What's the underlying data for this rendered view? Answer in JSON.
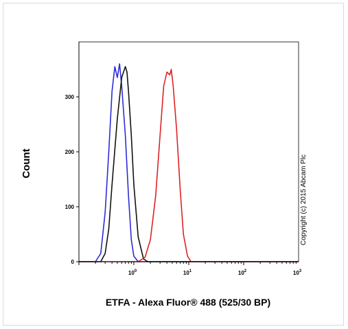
{
  "chart_data": {
    "type": "line",
    "xlabel": "ETFA - Alexa Fluor® 488 (525/30 BP)",
    "ylabel": "Count",
    "x_scale": "log",
    "xlim": [
      0.1,
      1000
    ],
    "ylim": [
      0,
      400
    ],
    "grid": false,
    "x_ticks": [
      {
        "value": 1,
        "base": "10",
        "exp": "0"
      },
      {
        "value": 10,
        "base": "10",
        "exp": "1"
      },
      {
        "value": 100,
        "base": "10",
        "exp": "2"
      },
      {
        "value": 1000,
        "base": "10",
        "exp": "3"
      }
    ],
    "y_ticks": [
      0,
      100,
      200,
      300
    ],
    "annotation": "Copyright (c) 2015 Abcam Plc",
    "series": [
      {
        "color": "#2b2bd6",
        "points": [
          [
            0.2,
            0
          ],
          [
            0.25,
            15
          ],
          [
            0.3,
            90
          ],
          [
            0.35,
            200
          ],
          [
            0.4,
            310
          ],
          [
            0.45,
            355
          ],
          [
            0.5,
            335
          ],
          [
            0.55,
            360
          ],
          [
            0.6,
            320
          ],
          [
            0.7,
            230
          ],
          [
            0.8,
            120
          ],
          [
            0.9,
            40
          ],
          [
            1.0,
            10
          ],
          [
            1.2,
            0
          ]
        ]
      },
      {
        "color": "#111111",
        "points": [
          [
            0.25,
            0
          ],
          [
            0.3,
            15
          ],
          [
            0.35,
            60
          ],
          [
            0.4,
            140
          ],
          [
            0.5,
            260
          ],
          [
            0.6,
            335
          ],
          [
            0.7,
            355
          ],
          [
            0.75,
            345
          ],
          [
            0.8,
            310
          ],
          [
            0.9,
            230
          ],
          [
            1.0,
            140
          ],
          [
            1.2,
            45
          ],
          [
            1.5,
            5
          ],
          [
            1.8,
            0
          ]
        ]
      },
      {
        "color": "#dd2222",
        "points": [
          [
            1.2,
            0
          ],
          [
            1.6,
            8
          ],
          [
            2.0,
            40
          ],
          [
            2.5,
            120
          ],
          [
            3.0,
            230
          ],
          [
            3.5,
            320
          ],
          [
            4.0,
            345
          ],
          [
            4.5,
            340
          ],
          [
            4.8,
            350
          ],
          [
            5.2,
            320
          ],
          [
            6.0,
            240
          ],
          [
            7.0,
            130
          ],
          [
            8.0,
            50
          ],
          [
            9.5,
            10
          ],
          [
            11,
            0
          ]
        ]
      }
    ]
  }
}
